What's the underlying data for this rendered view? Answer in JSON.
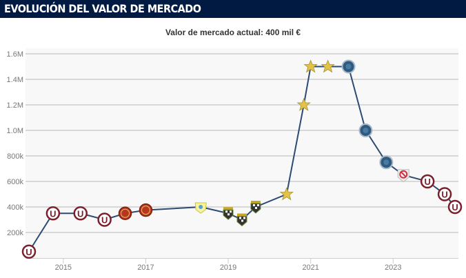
{
  "header": {
    "title": "EVOLUCIÓN DEL VALOR DE MERCADO"
  },
  "chart_data": {
    "type": "line",
    "title": "Valor de mercado actual: 400 mil €",
    "xlabel": "",
    "ylabel": "",
    "ylim": [
      0,
      1600000
    ],
    "xlim": [
      "2014-02",
      "2024-08"
    ],
    "y_ticks": [
      "200k",
      "400k",
      "600k",
      "800k",
      "1.0M",
      "1.2M",
      "1.4M",
      "1.6M"
    ],
    "x_ticks": [
      "2015",
      "2017",
      "2019",
      "2021",
      "2023"
    ],
    "grid": true,
    "line_color": "#2c4a72",
    "points": [
      {
        "date": "2014-03",
        "value": 50000,
        "icon": "club-u-crest-icon"
      },
      {
        "date": "2014-10",
        "value": 350000,
        "icon": "club-u-crest-icon"
      },
      {
        "date": "2015-06",
        "value": 350000,
        "icon": "club-u-crest-icon"
      },
      {
        "date": "2016-01",
        "value": 300000,
        "icon": "club-u-crest-icon"
      },
      {
        "date": "2016-07",
        "value": 350000,
        "icon": "club-utc-crest-icon"
      },
      {
        "date": "2017-01",
        "value": 375000,
        "icon": "club-utc-crest-icon"
      },
      {
        "date": "2018-05",
        "value": 400000,
        "icon": "club-yellow-crest-icon"
      },
      {
        "date": "2019-01",
        "value": 350000,
        "icon": "club-checkered-crest-icon"
      },
      {
        "date": "2019-05",
        "value": 300000,
        "icon": "club-checkered-crest-icon"
      },
      {
        "date": "2019-09",
        "value": 400000,
        "icon": "club-checkered-crest-icon"
      },
      {
        "date": "2020-06",
        "value": 500000,
        "icon": "club-star-crest-icon"
      },
      {
        "date": "2020-11",
        "value": 1200000,
        "icon": "club-star-crest-icon"
      },
      {
        "date": "2021-01",
        "value": 1500000,
        "icon": "club-star-crest-icon"
      },
      {
        "date": "2021-06",
        "value": 1500000,
        "icon": "club-star-crest-icon"
      },
      {
        "date": "2021-12",
        "value": 1500000,
        "icon": "club-blue-lion-crest-icon"
      },
      {
        "date": "2022-05",
        "value": 1000000,
        "icon": "club-blue-lion-crest-icon"
      },
      {
        "date": "2022-11",
        "value": 750000,
        "icon": "club-blue-lion-crest-icon"
      },
      {
        "date": "2023-04",
        "value": 650000,
        "icon": "no-club-icon"
      },
      {
        "date": "2023-11",
        "value": 600000,
        "icon": "club-u-crest-icon"
      },
      {
        "date": "2024-04",
        "value": 500000,
        "icon": "club-u-crest-icon"
      },
      {
        "date": "2024-07",
        "value": 400000,
        "icon": "club-u-crest-icon"
      }
    ]
  }
}
